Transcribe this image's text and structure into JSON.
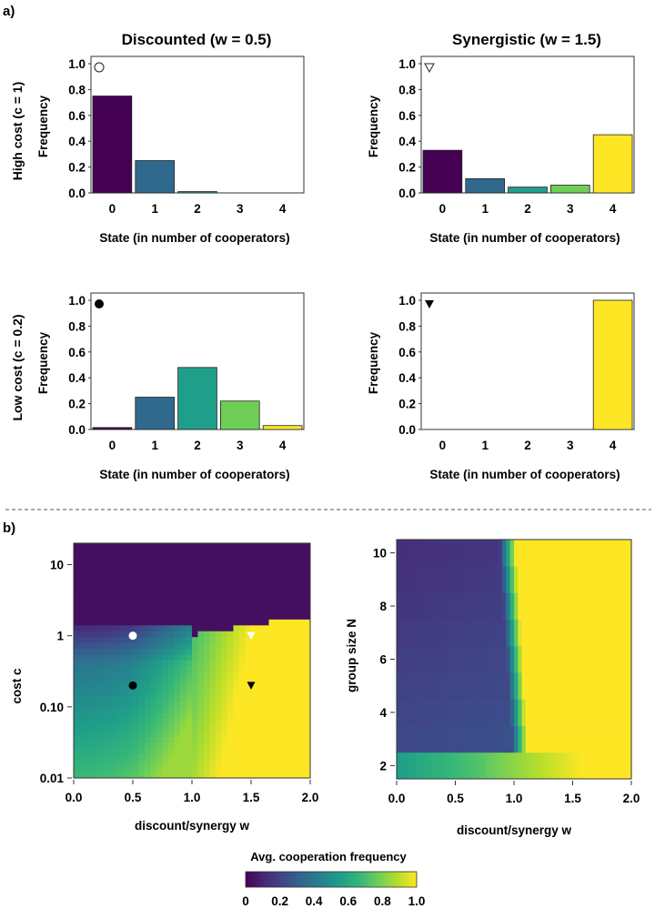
{
  "labels": {
    "panel_a": "a)",
    "panel_b": "b)"
  },
  "column_titles": [
    "Discounted (w = 0.5)",
    "Synergistic (w = 1.5)"
  ],
  "row_titles": [
    "High cost (c = 1)",
    "Low cost (c = 0.2)"
  ],
  "chart_data": [
    {
      "type": "bar",
      "id": "hist-discounted-high-cost",
      "marker": "open-circle",
      "categories": [
        "0",
        "1",
        "2",
        "3",
        "4"
      ],
      "values": [
        0.75,
        0.25,
        0.01,
        0.0,
        0.0
      ],
      "xlabel": "State (in number of cooperators)",
      "ylabel": "Frequency",
      "ylim": [
        0,
        1.0
      ],
      "yticks": [
        "0.0",
        "0.2",
        "0.4",
        "0.6",
        "0.8",
        "1.0"
      ]
    },
    {
      "type": "bar",
      "id": "hist-synergistic-high-cost",
      "marker": "open-triangle-down",
      "categories": [
        "0",
        "1",
        "2",
        "3",
        "4"
      ],
      "values": [
        0.33,
        0.11,
        0.045,
        0.06,
        0.45
      ],
      "xlabel": "State (in number of cooperators)",
      "ylabel": "Frequency",
      "ylim": [
        0,
        1.0
      ],
      "yticks": [
        "0.0",
        "0.2",
        "0.4",
        "0.6",
        "0.8",
        "1.0"
      ]
    },
    {
      "type": "bar",
      "id": "hist-discounted-low-cost",
      "marker": "filled-circle",
      "categories": [
        "0",
        "1",
        "2",
        "3",
        "4"
      ],
      "values": [
        0.015,
        0.25,
        0.48,
        0.22,
        0.03
      ],
      "xlabel": "State (in number of cooperators)",
      "ylabel": "Frequency",
      "ylim": [
        0,
        1.0
      ],
      "yticks": [
        "0.0",
        "0.2",
        "0.4",
        "0.6",
        "0.8",
        "1.0"
      ]
    },
    {
      "type": "bar",
      "id": "hist-synergistic-low-cost",
      "marker": "filled-triangle-down",
      "categories": [
        "0",
        "1",
        "2",
        "3",
        "4"
      ],
      "values": [
        0.0,
        0.0,
        0.0,
        0.0,
        1.0
      ],
      "xlabel": "State (in number of cooperators)",
      "ylabel": "Frequency",
      "ylim": [
        0,
        1.0
      ],
      "yticks": [
        "0.0",
        "0.2",
        "0.4",
        "0.6",
        "0.8",
        "1.0"
      ]
    },
    {
      "type": "heatmap",
      "id": "heatmap-cost-vs-w",
      "xlabel": "discount/synergy w",
      "ylabel": "cost c",
      "xlim": [
        0,
        2.0
      ],
      "ylim": [
        0.01,
        20
      ],
      "yscale": "log",
      "xticks": [
        "0.0",
        "0.5",
        "1.0",
        "1.5",
        "2.0"
      ],
      "yticks": [
        "0.01",
        "0.10",
        "1",
        "10"
      ],
      "markers": [
        {
          "w": 0.5,
          "c": 1,
          "marker": "circle",
          "fill": "#ffffff"
        },
        {
          "w": 1.5,
          "c": 1,
          "marker": "triangle-down",
          "fill": "#ffffff"
        },
        {
          "w": 0.5,
          "c": 0.2,
          "marker": "circle",
          "fill": "#000000"
        },
        {
          "w": 1.5,
          "c": 0.2,
          "marker": "triangle-down",
          "fill": "#000000"
        }
      ]
    },
    {
      "type": "heatmap",
      "id": "heatmap-groupsize-vs-w",
      "xlabel": "discount/synergy w",
      "ylabel": "group size N",
      "xlim": [
        0,
        2.0
      ],
      "ylim": [
        1.5,
        10.5
      ],
      "xticks": [
        "0.0",
        "0.5",
        "1.0",
        "1.5",
        "2.0"
      ],
      "yticks": [
        "2",
        "4",
        "6",
        "8",
        "10"
      ],
      "rows_N": [
        2,
        3,
        4,
        5,
        6,
        7,
        8,
        9,
        10
      ]
    }
  ],
  "colorbar": {
    "title": "Avg. cooperation frequency",
    "ticks": [
      "0",
      "0.2",
      "0.4",
      "0.6",
      "0.8",
      "1.0"
    ],
    "range": [
      0,
      1.0
    ],
    "colormap": "viridis"
  },
  "colors": {
    "viridis": [
      "#440154",
      "#482878",
      "#3e4989",
      "#31688e",
      "#26828e",
      "#1f9e89",
      "#35b779",
      "#6ece58",
      "#b5de2b",
      "#fde725"
    ]
  }
}
